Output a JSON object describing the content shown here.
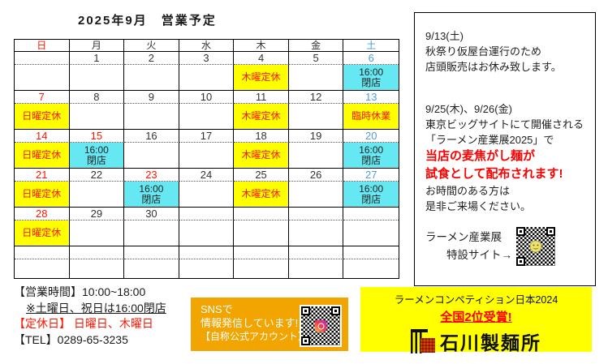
{
  "colors": {
    "highlight_yellow": "#ffff00",
    "highlight_cyan": "#66e8f2",
    "accent_red": "#ff1500",
    "saturday_blue": "#4e9cd9",
    "sns_orange": "#f2a400",
    "seal_red": "#c62200"
  },
  "calendar": {
    "title": "2025年9月　営業予定",
    "day_headers": [
      {
        "label": "日",
        "color": "red"
      },
      {
        "label": "月",
        "color": ""
      },
      {
        "label": "火",
        "color": ""
      },
      {
        "label": "水",
        "color": ""
      },
      {
        "label": "木",
        "color": ""
      },
      {
        "label": "金",
        "color": ""
      },
      {
        "label": "土",
        "color": "blue"
      }
    ],
    "weeks": [
      {
        "days": [
          {
            "date": "",
            "date_color": "",
            "note": "",
            "note_bg": "",
            "note_color": ""
          },
          {
            "date": "1",
            "date_color": "",
            "note": "",
            "note_bg": "",
            "note_color": ""
          },
          {
            "date": "2",
            "date_color": "",
            "note": "",
            "note_bg": "",
            "note_color": ""
          },
          {
            "date": "3",
            "date_color": "",
            "note": "",
            "note_bg": "",
            "note_color": ""
          },
          {
            "date": "4",
            "date_color": "",
            "note": "木曜定休",
            "note_bg": "yellow",
            "note_color": "red"
          },
          {
            "date": "5",
            "date_color": "",
            "note": "",
            "note_bg": "",
            "note_color": ""
          },
          {
            "date": "6",
            "date_color": "blue",
            "note": "16:00\n閉店",
            "note_bg": "cyan",
            "note_color": ""
          }
        ]
      },
      {
        "days": [
          {
            "date": "7",
            "date_color": "red",
            "note": "日曜定休",
            "note_bg": "yellow",
            "note_color": "red"
          },
          {
            "date": "8",
            "date_color": "",
            "note": "",
            "note_bg": "",
            "note_color": ""
          },
          {
            "date": "9",
            "date_color": "",
            "note": "",
            "note_bg": "",
            "note_color": ""
          },
          {
            "date": "10",
            "date_color": "",
            "note": "",
            "note_bg": "",
            "note_color": ""
          },
          {
            "date": "11",
            "date_color": "",
            "note": "木曜定休",
            "note_bg": "yellow",
            "note_color": "red"
          },
          {
            "date": "12",
            "date_color": "",
            "note": "",
            "note_bg": "",
            "note_color": ""
          },
          {
            "date": "13",
            "date_color": "blue",
            "note": "臨時休業",
            "note_bg": "yellow",
            "note_color": "red"
          }
        ]
      },
      {
        "days": [
          {
            "date": "14",
            "date_color": "red",
            "note": "日曜定休",
            "note_bg": "yellow",
            "note_color": "red"
          },
          {
            "date": "15",
            "date_color": "red",
            "note": "16:00\n閉店",
            "note_bg": "cyan",
            "note_color": ""
          },
          {
            "date": "16",
            "date_color": "",
            "note": "",
            "note_bg": "",
            "note_color": ""
          },
          {
            "date": "17",
            "date_color": "",
            "note": "",
            "note_bg": "",
            "note_color": ""
          },
          {
            "date": "18",
            "date_color": "",
            "note": "木曜定休",
            "note_bg": "yellow",
            "note_color": "red"
          },
          {
            "date": "19",
            "date_color": "",
            "note": "",
            "note_bg": "",
            "note_color": ""
          },
          {
            "date": "20",
            "date_color": "blue",
            "note": "16:00\n閉店",
            "note_bg": "cyan",
            "note_color": ""
          }
        ]
      },
      {
        "days": [
          {
            "date": "21",
            "date_color": "red",
            "note": "日曜定休",
            "note_bg": "yellow",
            "note_color": "red"
          },
          {
            "date": "22",
            "date_color": "",
            "note": "",
            "note_bg": "",
            "note_color": ""
          },
          {
            "date": "23",
            "date_color": "red",
            "note": "16:00\n閉店",
            "note_bg": "cyan",
            "note_color": ""
          },
          {
            "date": "24",
            "date_color": "",
            "note": "",
            "note_bg": "",
            "note_color": ""
          },
          {
            "date": "25",
            "date_color": "",
            "note": "木曜定休",
            "note_bg": "yellow",
            "note_color": "red"
          },
          {
            "date": "26",
            "date_color": "",
            "note": "",
            "note_bg": "",
            "note_color": ""
          },
          {
            "date": "27",
            "date_color": "blue",
            "note": "16:00\n閉店",
            "note_bg": "cyan",
            "note_color": ""
          }
        ]
      },
      {
        "days": [
          {
            "date": "28",
            "date_color": "red",
            "note": "日曜定休",
            "note_bg": "yellow",
            "note_color": "red"
          },
          {
            "date": "29",
            "date_color": "",
            "note": "",
            "note_bg": "",
            "note_color": ""
          },
          {
            "date": "30",
            "date_color": "",
            "note": "",
            "note_bg": "",
            "note_color": ""
          },
          {
            "date": "",
            "date_color": "",
            "note": "",
            "note_bg": "",
            "note_color": ""
          },
          {
            "date": "",
            "date_color": "",
            "note": "",
            "note_bg": "",
            "note_color": ""
          },
          {
            "date": "",
            "date_color": "",
            "note": "",
            "note_bg": "",
            "note_color": ""
          },
          {
            "date": "",
            "date_color": "",
            "note": "",
            "note_bg": "",
            "note_color": ""
          }
        ]
      },
      {
        "days": [
          {
            "date": "",
            "date_color": "",
            "note": "",
            "note_bg": "",
            "note_color": ""
          },
          {
            "date": "",
            "date_color": "",
            "note": "",
            "note_bg": "",
            "note_color": ""
          },
          {
            "date": "",
            "date_color": "",
            "note": "",
            "note_bg": "",
            "note_color": ""
          },
          {
            "date": "",
            "date_color": "",
            "note": "",
            "note_bg": "",
            "note_color": ""
          },
          {
            "date": "",
            "date_color": "",
            "note": "",
            "note_bg": "",
            "note_color": ""
          },
          {
            "date": "",
            "date_color": "",
            "note": "",
            "note_bg": "",
            "note_color": ""
          },
          {
            "date": "",
            "date_color": "",
            "note": "",
            "note_bg": "",
            "note_color": ""
          }
        ]
      }
    ]
  },
  "notice_panel": {
    "sections": [
      {
        "lines": [
          {
            "text": "9/13(土)"
          },
          {
            "text": "秋祭り仮屋台運行のため"
          },
          {
            "text": "店頭販売はお休み致します。"
          }
        ]
      },
      {
        "lines": [
          {
            "text": "9/25(木)、9/26(金)"
          },
          {
            "text": "東京ビッグサイトにて開催される"
          },
          {
            "text": "「ラーメン産業展2025」で"
          },
          {
            "text": "当店の麦焦がし麺が",
            "emphasis": true
          },
          {
            "text": "試食として配布されます!",
            "emphasis": true
          },
          {
            "text": "お時間のある方は"
          },
          {
            "text": "是非ご来場ください。"
          }
        ]
      }
    ],
    "qr_caption": {
      "line1": "ラーメン産業展",
      "line2": "特設サイト→"
    }
  },
  "info": {
    "hours": "【営業時間】10:00~18:00",
    "hours_note": "※土曜日、祝日は16:00閉店",
    "closed_days": "【定休日】 日曜日、木曜日",
    "tel": "【TEL】0289-65-3235"
  },
  "sns": {
    "line1": "SNSで",
    "line2": "情報発信しています!",
    "line3": "【自称公式アカウント】→→"
  },
  "banner": {
    "competition": "ラーメンコンペティション日本2024",
    "award": "全国2位受賞!",
    "shop_name": "石川製麺所"
  },
  "icons": {
    "expo_qr": "qr-code-with-smiley",
    "sns_qr": "qr-code-with-instagram",
    "logo_mark": "noren-and-seal-logo"
  }
}
